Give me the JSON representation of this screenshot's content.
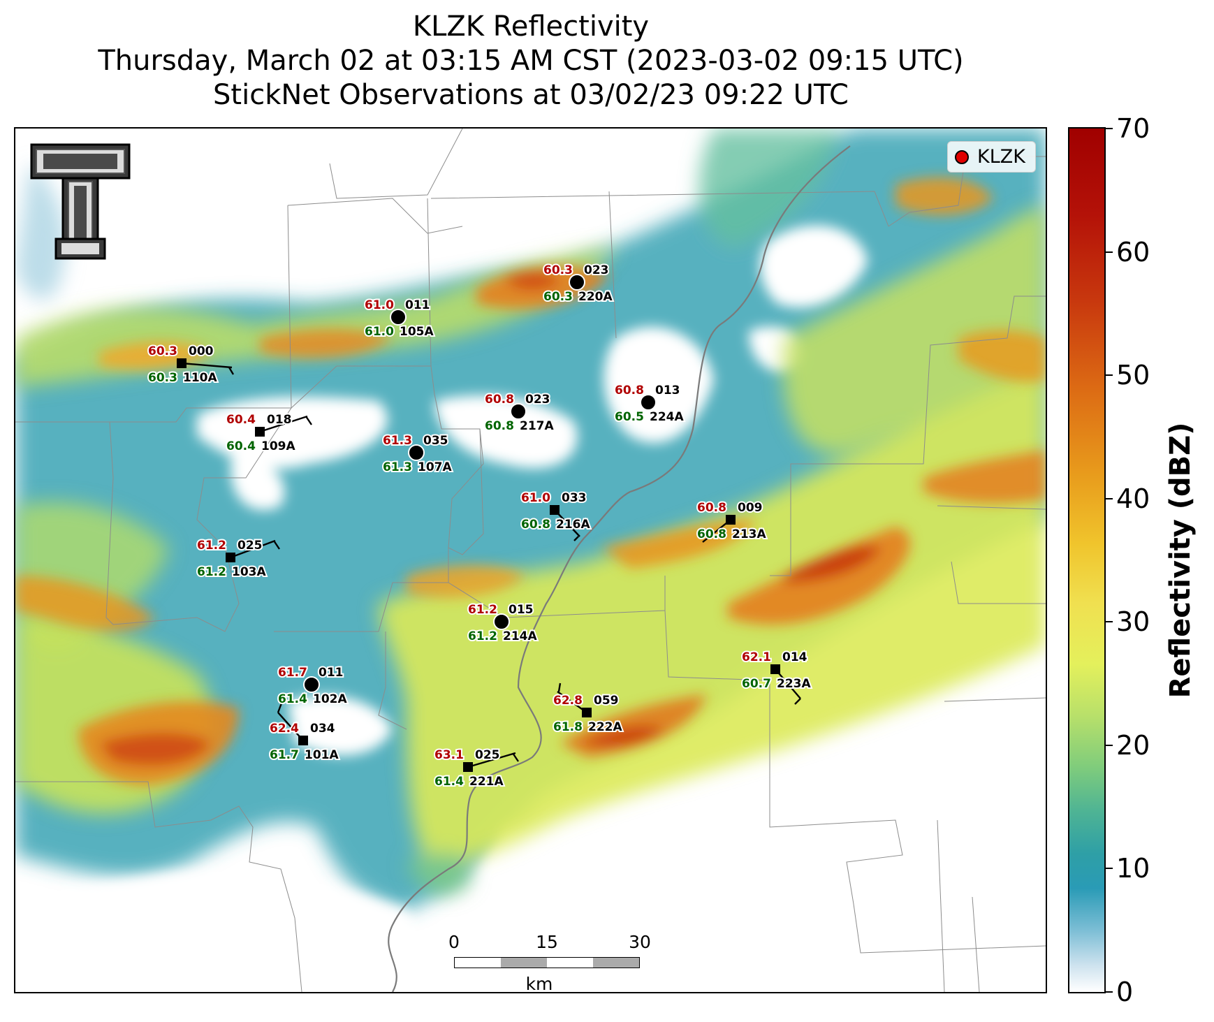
{
  "title": {
    "line1": "KLZK Reflectivity",
    "line2": "Thursday, March 02 at 03:15 AM CST (2023-03-02 09:15 UTC)",
    "line3": "StickNet Observations at 03/02/23 09:22 UTC"
  },
  "legend": {
    "label": "KLZK",
    "dot_color": "#e00000"
  },
  "colorbar": {
    "label": "Reflectivity (dBZ)",
    "ticks": [
      "0",
      "10",
      "20",
      "30",
      "40",
      "50",
      "60",
      "70"
    ],
    "min": 0,
    "max": 70
  },
  "scalebar": {
    "ticks": [
      "0",
      "15",
      "30"
    ],
    "unit": "km"
  },
  "colors": {
    "temp": "#b00000",
    "dew": "#006400",
    "id": "#000000"
  },
  "stations": [
    {
      "id": "000",
      "name": "110A",
      "temp": "60.3",
      "dew": "60.3",
      "marker": "square"
    },
    {
      "id": "011",
      "name": "105A",
      "temp": "61.0",
      "dew": "61.0",
      "marker": "circle"
    },
    {
      "id": "023",
      "name": "220A",
      "temp": "60.3",
      "dew": "60.3",
      "marker": "circle"
    },
    {
      "id": "023",
      "name": "217A",
      "temp": "60.8",
      "dew": "60.8",
      "marker": "circle"
    },
    {
      "id": "013",
      "name": "224A",
      "temp": "60.8",
      "dew": "60.5",
      "marker": "circle"
    },
    {
      "id": "018",
      "name": "109A",
      "temp": "60.4",
      "dew": "60.4",
      "marker": "square"
    },
    {
      "id": "035",
      "name": "107A",
      "temp": "61.3",
      "dew": "61.3",
      "marker": "circle"
    },
    {
      "id": "033",
      "name": "216A",
      "temp": "61.0",
      "dew": "60.8",
      "marker": "square"
    },
    {
      "id": "009",
      "name": "213A",
      "temp": "60.8",
      "dew": "60.8",
      "marker": "square"
    },
    {
      "id": "025",
      "name": "103A",
      "temp": "61.2",
      "dew": "61.2",
      "marker": "square"
    },
    {
      "id": "015",
      "name": "214A",
      "temp": "61.2",
      "dew": "61.2",
      "marker": "circle"
    },
    {
      "id": "011",
      "name": "102A",
      "temp": "61.7",
      "dew": "61.4",
      "marker": "circle"
    },
    {
      "id": "014",
      "name": "223A",
      "temp": "62.1",
      "dew": "60.7",
      "marker": "square"
    },
    {
      "id": "059",
      "name": "222A",
      "temp": "62.8",
      "dew": "61.8",
      "marker": "square"
    },
    {
      "id": "034",
      "name": "101A",
      "temp": "62.4",
      "dew": "61.7",
      "marker": "square"
    },
    {
      "id": "025",
      "name": "221A",
      "temp": "63.1",
      "dew": "61.4",
      "marker": "square"
    }
  ]
}
